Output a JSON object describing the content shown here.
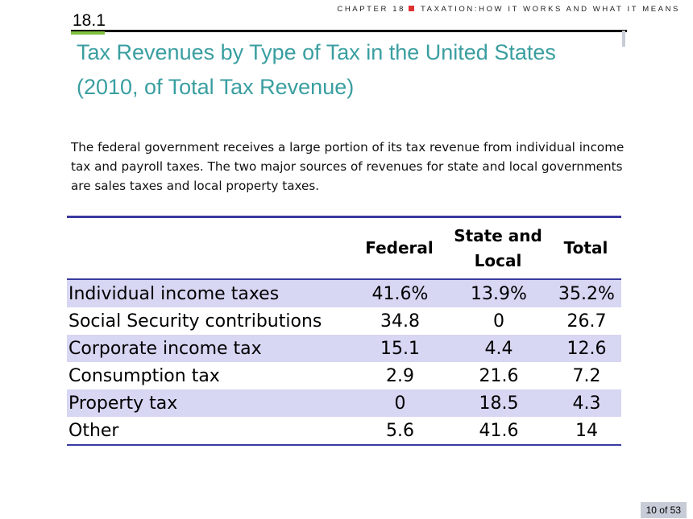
{
  "header": {
    "chapter": "CHAPTER 18",
    "chapter_title": "TAXATION:HOW IT WORKS AND WHAT IT MEANS"
  },
  "section_number": "18.1",
  "title_line1": "Tax Revenues by Type of Tax in the United States",
  "title_line2": "(2010, of Total Tax Revenue)",
  "description": "The federal government receives a large portion of its tax revenue from individual income tax and payroll taxes. The two major sources of revenues for state and local governments are sales taxes and local property taxes.",
  "table": {
    "columns": [
      "",
      "Federal",
      "State and Local",
      "Total"
    ],
    "rows": [
      {
        "label": "Individual income taxes",
        "federal": "41.6%",
        "state_local": "13.9%",
        "total": "35.2%"
      },
      {
        "label": "Social Security contributions",
        "federal": "34.8",
        "state_local": "0",
        "total": "26.7"
      },
      {
        "label": "Corporate income tax",
        "federal": "15.1",
        "state_local": "4.4",
        "total": "12.6"
      },
      {
        "label": "Consumption tax",
        "federal": "2.9",
        "state_local": "21.6",
        "total": "7.2"
      },
      {
        "label": "Property tax",
        "federal": "0",
        "state_local": "18.5",
        "total": "4.3"
      },
      {
        "label": "Other",
        "federal": "5.6",
        "state_local": "41.6",
        "total": "14"
      }
    ]
  },
  "page_counter": "10 of 53",
  "colors": {
    "title": "#3a9ea0",
    "row_shade": "#d7d6f3",
    "table_rule": "#3a3aa0",
    "chapter_marker": "#e03030",
    "section_accent": "#7fc241",
    "counter_bg": "#c8ccd8"
  }
}
